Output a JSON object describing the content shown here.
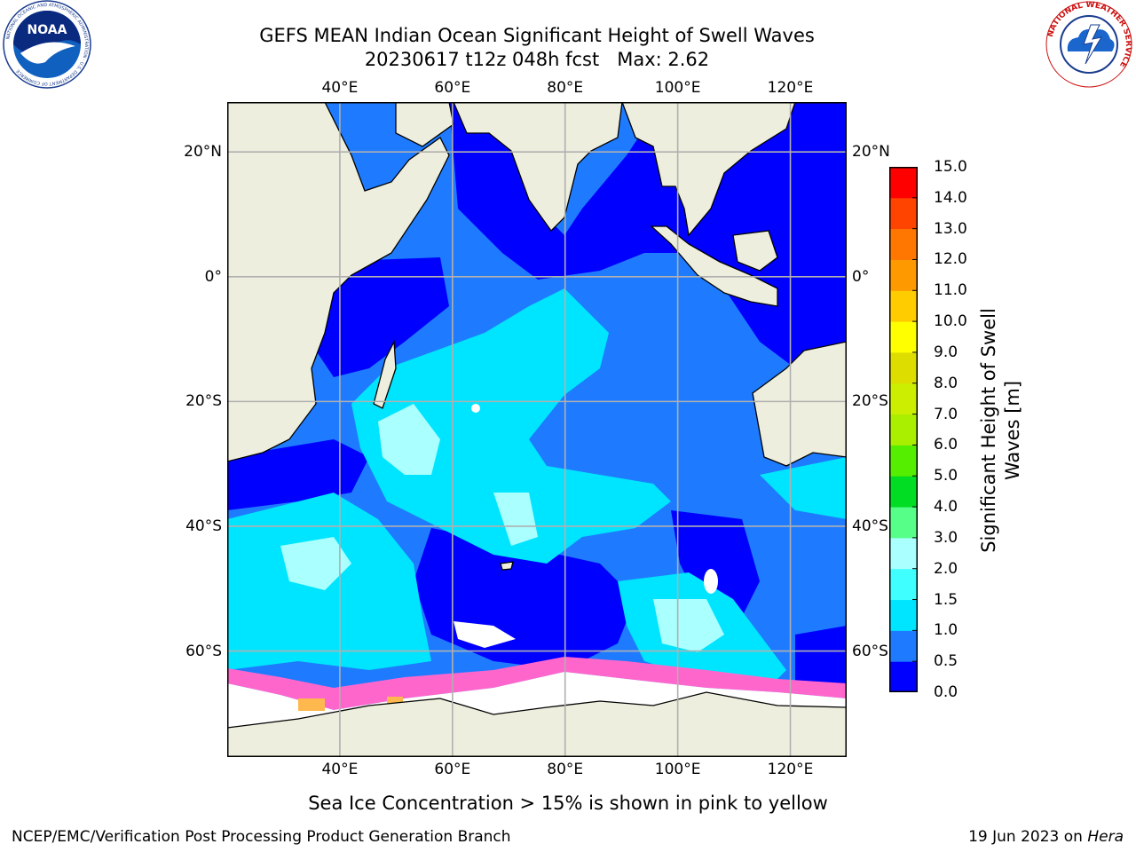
{
  "title": {
    "line1": "GEFS MEAN Indian Ocean Significant Height of Swell Waves",
    "line2": "20230617 t12z 048h fcst   Max: 2.62"
  },
  "map": {
    "lon_range": [
      20,
      130
    ],
    "lat_range": [
      -77,
      28
    ],
    "lon_ticks": [
      {
        "value": 40,
        "label": "40°E"
      },
      {
        "value": 60,
        "label": "60°E"
      },
      {
        "value": 80,
        "label": "80°E"
      },
      {
        "value": 100,
        "label": "100°E"
      },
      {
        "value": 120,
        "label": "120°E"
      }
    ],
    "lat_ticks": [
      {
        "value": 20,
        "label": "20°N"
      },
      {
        "value": 0,
        "label": "0°"
      },
      {
        "value": -20,
        "label": "20°S"
      },
      {
        "value": -40,
        "label": "40°S"
      },
      {
        "value": -60,
        "label": "60°S"
      }
    ],
    "grid": true,
    "colors": {
      "ocean_low": "#0000ff",
      "ocean_mid": "#1e7bff",
      "ocean_high": "#00e5ff",
      "land": "#eeeede",
      "sea_ice": "#ffffff",
      "ice_edge": "#ff66cc",
      "gridline": "#b0b0b0"
    }
  },
  "colorbar": {
    "title": "Significant Height of Swell\nWaves [m]",
    "labels": [
      "0.0",
      "0.5",
      "1.0",
      "1.5",
      "2.0",
      "3.0",
      "4.0",
      "5.0",
      "6.0",
      "7.0",
      "8.0",
      "9.0",
      "10.0",
      "11.0",
      "12.0",
      "13.0",
      "14.0",
      "15.0"
    ],
    "colors": [
      "#0000ff",
      "#1e7bff",
      "#00e5ff",
      "#40ffff",
      "#aaffff",
      "#55ff88",
      "#00dd22",
      "#55ee00",
      "#aaee00",
      "#ccee00",
      "#dddd00",
      "#ffff00",
      "#ffcc00",
      "#ff9900",
      "#ff7700",
      "#ff4400",
      "#ff0000"
    ]
  },
  "caption": "Sea Ice Concentration > 15% is shown in pink to yellow",
  "credits": {
    "left": "NCEP/EMC/Verification Post Processing Product Generation Branch",
    "right_date": "19 Jun 2023 on ",
    "right_host": "Hera"
  },
  "logos": {
    "noaa": {
      "text": "NOAA",
      "ring_text": "NATIONAL OCEANIC AND ATMOSPHERIC ADMINISTRATION · U.S. DEPARTMENT OF COMMERCE"
    },
    "nws": {
      "ring_text": "NATIONAL WEATHER SERVICE"
    }
  }
}
